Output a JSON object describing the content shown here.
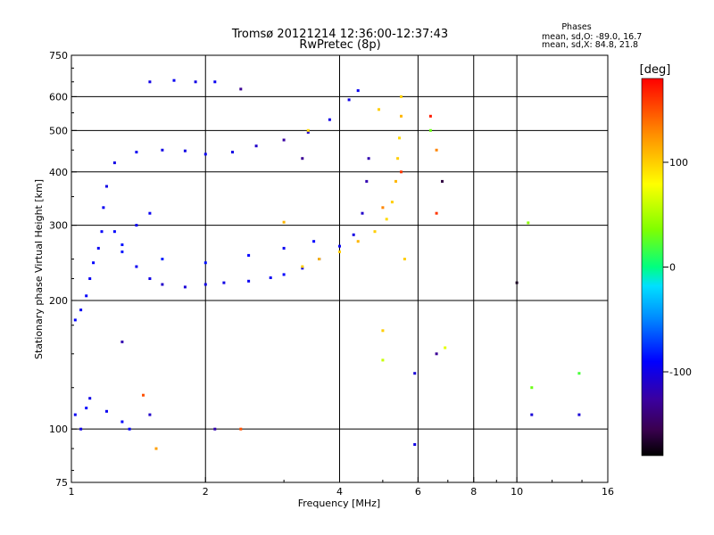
{
  "header": {
    "title_line1": "Tromsø 20121214 12:36:00-12:37:43",
    "title_line2": "RwPretec (8p)",
    "stats_title": "Phases",
    "stats_o": "mean, sd,O: -89.0, 16.7",
    "stats_x": "mean, sd,X:  84.8, 21.8"
  },
  "chart_data": {
    "type": "scatter",
    "title": "Tromsø 20121214 12:36:00-12:37:43",
    "subtitle": "RwPretec (8p)",
    "xlabel": "Frequency [MHz]",
    "ylabel": "Stationary phase Virtual Height [km]",
    "x_scale": "log",
    "y_scale": "log",
    "xlim": [
      1,
      16
    ],
    "ylim": [
      75,
      750
    ],
    "x_ticks": [
      1,
      2,
      4,
      6,
      8,
      10,
      16
    ],
    "x_tick_labels": [
      "1",
      "2",
      "4",
      "6",
      "8",
      "10",
      "16"
    ],
    "y_ticks": [
      75,
      100,
      200,
      300,
      400,
      500,
      600,
      750
    ],
    "y_tick_labels": [
      "75",
      "100",
      "200",
      "300",
      "400",
      "500",
      "600",
      "750"
    ],
    "grid": true,
    "grid_x": [
      2,
      4,
      6,
      8,
      10
    ],
    "grid_y": [
      100,
      200,
      300,
      400,
      500,
      600
    ],
    "colorbar": {
      "label": "[deg]",
      "min": -180,
      "max": 180,
      "ticks": [
        100,
        0,
        -100
      ],
      "tick_labels": [
        "100",
        "0",
        "-100"
      ],
      "colormap": "rainbow"
    },
    "series": [
      {
        "points": [
          [
            1.02,
            180,
            -90
          ],
          [
            1.05,
            190,
            -95
          ],
          [
            1.08,
            205,
            -92
          ],
          [
            1.1,
            225,
            -95
          ],
          [
            1.12,
            245,
            -90
          ],
          [
            1.15,
            265,
            -95
          ],
          [
            1.17,
            290,
            -92
          ],
          [
            1.18,
            330,
            -95
          ],
          [
            1.2,
            370,
            -100
          ],
          [
            1.25,
            290,
            -90
          ],
          [
            1.3,
            270,
            -85
          ],
          [
            1.4,
            240,
            -95
          ],
          [
            1.5,
            225,
            -100
          ],
          [
            1.6,
            218,
            -110
          ],
          [
            1.8,
            215,
            -105
          ],
          [
            2.0,
            218,
            -100
          ],
          [
            2.2,
            220,
            -100
          ],
          [
            2.5,
            222,
            -95
          ],
          [
            2.8,
            226,
            -95
          ],
          [
            3.0,
            230,
            -90
          ],
          [
            3.3,
            238,
            -95
          ],
          [
            3.6,
            250,
            -90
          ],
          [
            4.0,
            268,
            -95
          ],
          [
            4.3,
            285,
            -100
          ],
          [
            4.5,
            320,
            -110
          ],
          [
            4.6,
            380,
            -120
          ],
          [
            4.65,
            430,
            -120
          ],
          [
            1.3,
            260,
            -85
          ],
          [
            1.6,
            250,
            -80
          ],
          [
            2.0,
            245,
            -85
          ],
          [
            2.5,
            255,
            -90
          ],
          [
            3.0,
            265,
            -95
          ],
          [
            3.5,
            275,
            -90
          ],
          [
            1.4,
            300,
            -95
          ],
          [
            1.5,
            320,
            -95
          ],
          [
            1.25,
            420,
            -100
          ],
          [
            1.4,
            445,
            -95
          ],
          [
            1.6,
            450,
            -100
          ],
          [
            1.8,
            448,
            -100
          ],
          [
            2.0,
            440,
            -95
          ],
          [
            2.3,
            445,
            -100
          ],
          [
            2.6,
            460,
            -110
          ],
          [
            3.0,
            475,
            -125
          ],
          [
            3.4,
            495,
            -110
          ],
          [
            3.8,
            530,
            -100
          ],
          [
            4.2,
            590,
            -100
          ],
          [
            4.4,
            620,
            -95
          ],
          [
            1.5,
            650,
            -100
          ],
          [
            1.7,
            655,
            -95
          ],
          [
            1.9,
            650,
            -100
          ],
          [
            2.1,
            650,
            -95
          ],
          [
            1.02,
            108,
            -95
          ],
          [
            1.05,
            100,
            -100
          ],
          [
            1.08,
            112,
            -90
          ],
          [
            1.1,
            118,
            -100
          ],
          [
            1.2,
            110,
            -95
          ],
          [
            1.3,
            104,
            -90
          ],
          [
            1.35,
            100,
            -90
          ]
        ]
      },
      {
        "points": [
          [
            3.3,
            240,
            100
          ],
          [
            3.6,
            250,
            110
          ],
          [
            4.0,
            260,
            100
          ],
          [
            4.4,
            275,
            110
          ],
          [
            4.8,
            290,
            100
          ],
          [
            5.1,
            310,
            95
          ],
          [
            5.25,
            340,
            100
          ],
          [
            5.35,
            380,
            110
          ],
          [
            5.4,
            430,
            100
          ],
          [
            5.45,
            480,
            95
          ],
          [
            5.5,
            540,
            110
          ],
          [
            5.5,
            600,
            100
          ],
          [
            3.0,
            305,
            110
          ],
          [
            3.4,
            500,
            95
          ],
          [
            5.0,
            330,
            130
          ],
          [
            5.5,
            400,
            160
          ],
          [
            5.6,
            250,
            100
          ],
          [
            6.6,
            320,
            160
          ],
          [
            6.4,
            540,
            170
          ],
          [
            4.9,
            560,
            100
          ]
        ]
      },
      {
        "points": [
          [
            1.5,
            108,
            -110
          ],
          [
            2.1,
            100,
            -120
          ],
          [
            3.3,
            430,
            -130
          ],
          [
            5.0,
            170,
            100
          ],
          [
            5.0,
            145,
            60
          ],
          [
            5.9,
            135,
            -105
          ],
          [
            5.9,
            92,
            -100
          ],
          [
            6.6,
            450,
            130
          ],
          [
            6.6,
            150,
            -130
          ],
          [
            6.8,
            380,
            -160
          ],
          [
            6.9,
            155,
            70
          ],
          [
            10.6,
            304,
            40
          ],
          [
            10.8,
            125,
            30
          ],
          [
            10.8,
            108,
            -105
          ],
          [
            13.8,
            135,
            20
          ],
          [
            13.8,
            108,
            -105
          ],
          [
            10.0,
            220,
            -170
          ],
          [
            1.3,
            160,
            -120
          ],
          [
            1.45,
            120,
            150
          ],
          [
            1.55,
            90,
            120
          ],
          [
            2.4,
            100,
            150
          ],
          [
            2.4,
            625,
            -130
          ],
          [
            6.4,
            500,
            30
          ]
        ]
      }
    ]
  }
}
